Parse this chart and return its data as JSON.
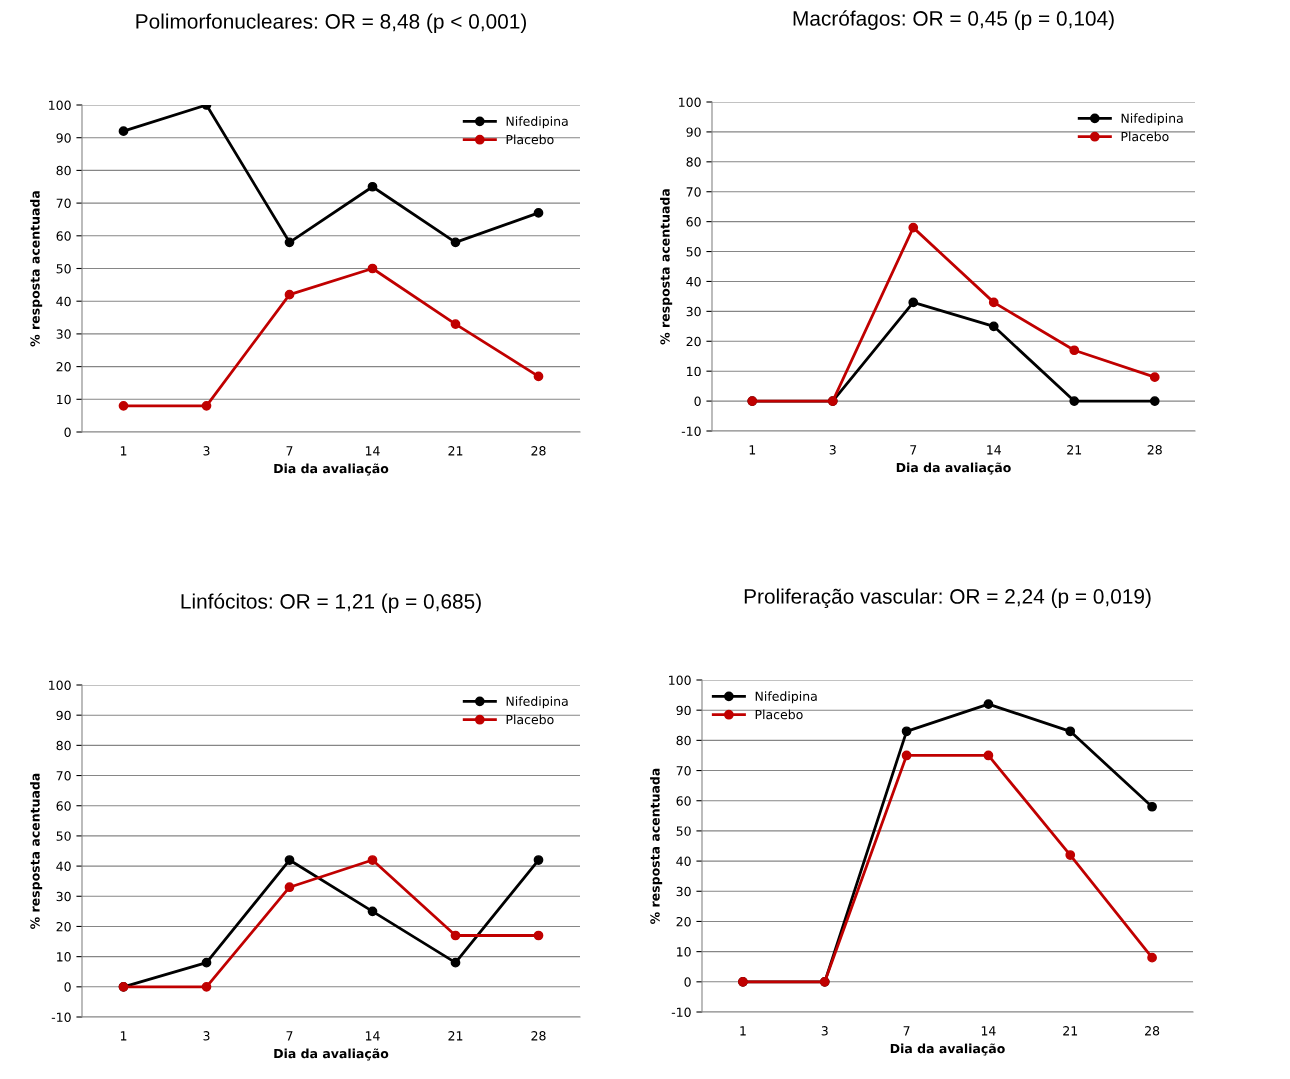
{
  "chart_data": [
    {
      "type": "line",
      "title": "Polimorfonucleares: OR = 8,48 (p < 0,001)",
      "xlabel": "Dia da avaliação",
      "ylabel": "% resposta acentuada",
      "categories": [
        "1",
        "3",
        "7",
        "14",
        "21",
        "28"
      ],
      "ylim": [
        0,
        100
      ],
      "yticks": [
        0,
        10,
        20,
        30,
        40,
        50,
        60,
        70,
        80,
        90,
        100
      ],
      "grid": "y",
      "legend": "top right",
      "marker": "circle",
      "line_style": "solid",
      "series": [
        {
          "name": "Nifedipina",
          "color": "#000000",
          "values": [
            92,
            100,
            58,
            75,
            58,
            67
          ]
        },
        {
          "name": "Placebo",
          "color": "#c00000",
          "values": [
            8,
            8,
            42,
            50,
            33,
            17
          ]
        }
      ]
    },
    {
      "type": "line",
      "title": "Macrófagos: OR = 0,45 (p = 0,104)",
      "xlabel": "Dia da avaliação",
      "ylabel": "% resposta acentuada",
      "categories": [
        "1",
        "3",
        "7",
        "14",
        "21",
        "28"
      ],
      "ylim": [
        -10,
        100
      ],
      "yticks": [
        -10,
        0,
        10,
        20,
        30,
        40,
        50,
        60,
        70,
        80,
        90,
        100
      ],
      "grid": "y",
      "legend": "top right",
      "marker": "circle",
      "line_style": "solid",
      "series": [
        {
          "name": "Nifedipina",
          "color": "#000000",
          "values": [
            0,
            0,
            33,
            25,
            0,
            0
          ]
        },
        {
          "name": "Placebo",
          "color": "#c00000",
          "values": [
            0,
            0,
            58,
            33,
            17,
            8
          ]
        }
      ]
    },
    {
      "type": "line",
      "title": "Linfócitos: OR = 1,21 (p = 0,685)",
      "xlabel": "Dia da avaliação",
      "ylabel": "% resposta acentuada",
      "categories": [
        "1",
        "3",
        "7",
        "14",
        "21",
        "28"
      ],
      "ylim": [
        -10,
        100
      ],
      "yticks": [
        -10,
        0,
        10,
        20,
        30,
        40,
        50,
        60,
        70,
        80,
        90,
        100
      ],
      "grid": "y",
      "legend": "top right",
      "marker": "circle",
      "line_style": "solid",
      "series": [
        {
          "name": "Nifedipina",
          "color": "#000000",
          "values": [
            0,
            8,
            42,
            25,
            8,
            42
          ]
        },
        {
          "name": "Placebo",
          "color": "#c00000",
          "values": [
            0,
            0,
            33,
            42,
            17,
            17
          ]
        }
      ]
    },
    {
      "type": "line",
      "title": "Proliferação vascular: OR = 2,24 (p = 0,019)",
      "xlabel": "Dia da avaliação",
      "ylabel": "% resposta acentuada",
      "categories": [
        "1",
        "3",
        "7",
        "14",
        "21",
        "28"
      ],
      "ylim": [
        -10,
        100
      ],
      "yticks": [
        -10,
        0,
        10,
        20,
        30,
        40,
        50,
        60,
        70,
        80,
        90,
        100
      ],
      "grid": "y",
      "legend": "top left",
      "marker": "circle",
      "line_style": "solid",
      "series": [
        {
          "name": "Nifedipina",
          "color": "#000000",
          "values": [
            0,
            0,
            83,
            92,
            83,
            58
          ]
        },
        {
          "name": "Placebo",
          "color": "#c00000",
          "values": [
            0,
            0,
            75,
            75,
            42,
            8
          ]
        }
      ]
    }
  ]
}
